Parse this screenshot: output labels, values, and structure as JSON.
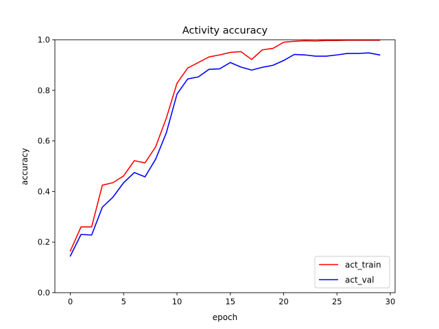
{
  "chart_data": {
    "type": "line",
    "title": "Activity accuracy",
    "xlabel": "epoch",
    "ylabel": "accuracy",
    "xlim": [
      -1.45,
      30.45
    ],
    "ylim": [
      0.0,
      1.0
    ],
    "xticks": [
      0,
      5,
      10,
      15,
      20,
      25,
      30
    ],
    "yticks": [
      0.0,
      0.2,
      0.4,
      0.6,
      0.8,
      1.0
    ],
    "xtick_labels": [
      "0",
      "5",
      "10",
      "15",
      "20",
      "25",
      "30"
    ],
    "ytick_labels": [
      "0.0",
      "0.2",
      "0.4",
      "0.6",
      "0.8",
      "1.0"
    ],
    "grid": false,
    "legend_position": "lower-right",
    "x": [
      0,
      1,
      2,
      3,
      4,
      5,
      6,
      7,
      8,
      9,
      10,
      11,
      12,
      13,
      14,
      15,
      16,
      17,
      18,
      19,
      20,
      21,
      22,
      23,
      24,
      25,
      26,
      27,
      28,
      29
    ],
    "series": [
      {
        "name": "act_train",
        "color": "#ff0000",
        "values": [
          0.165,
          0.26,
          0.26,
          0.425,
          0.435,
          0.462,
          0.522,
          0.513,
          0.577,
          0.69,
          0.828,
          0.888,
          0.91,
          0.932,
          0.94,
          0.95,
          0.953,
          0.922,
          0.96,
          0.966,
          0.99,
          0.994,
          0.996,
          0.995,
          0.997,
          0.997,
          0.998,
          0.998,
          0.998,
          0.998
        ]
      },
      {
        "name": "act_val",
        "color": "#0000ff",
        "values": [
          0.145,
          0.23,
          0.228,
          0.338,
          0.378,
          0.435,
          0.475,
          0.458,
          0.528,
          0.632,
          0.785,
          0.845,
          0.853,
          0.883,
          0.885,
          0.91,
          0.892,
          0.88,
          0.891,
          0.899,
          0.918,
          0.942,
          0.94,
          0.935,
          0.935,
          0.94,
          0.946,
          0.946,
          0.948,
          0.94
        ]
      }
    ]
  }
}
